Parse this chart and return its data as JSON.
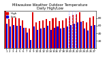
{
  "title": "Milwaukee Weather Outdoor Temperature\nDaily High/Low",
  "title_fontsize": 3.8,
  "background_color": "#ffffff",
  "highs": [
    100,
    78,
    82,
    82,
    80,
    75,
    55,
    52,
    95,
    68,
    72,
    75,
    78,
    72,
    80,
    82,
    72,
    75,
    80,
    85,
    88,
    90,
    95,
    72,
    68,
    82,
    85
  ],
  "lows": [
    65,
    58,
    62,
    60,
    60,
    55,
    42,
    22,
    58,
    50,
    52,
    55,
    60,
    50,
    55,
    58,
    52,
    55,
    58,
    62,
    65,
    68,
    70,
    52,
    48,
    60,
    62
  ],
  "labels": [
    "1",
    "2",
    "3",
    "4",
    "5",
    "6",
    "7",
    "8",
    "9",
    "10",
    "11",
    "12",
    "13",
    "14",
    "15",
    "16",
    "17",
    "18",
    "19",
    "20",
    "21",
    "22",
    "23",
    "24",
    "25",
    "26",
    "27"
  ],
  "high_color": "#dd0000",
  "low_color": "#0000dd",
  "dashed_lines": [
    19,
    20,
    21
  ],
  "ylim": [
    0,
    100
  ],
  "yticks": [
    20,
    40,
    60,
    80
  ],
  "ytick_fontsize": 3.2,
  "xtick_fontsize": 2.8,
  "bar_width": 0.42,
  "legend_fontsize": 3.0,
  "legend_high": "High",
  "legend_low": "Low"
}
